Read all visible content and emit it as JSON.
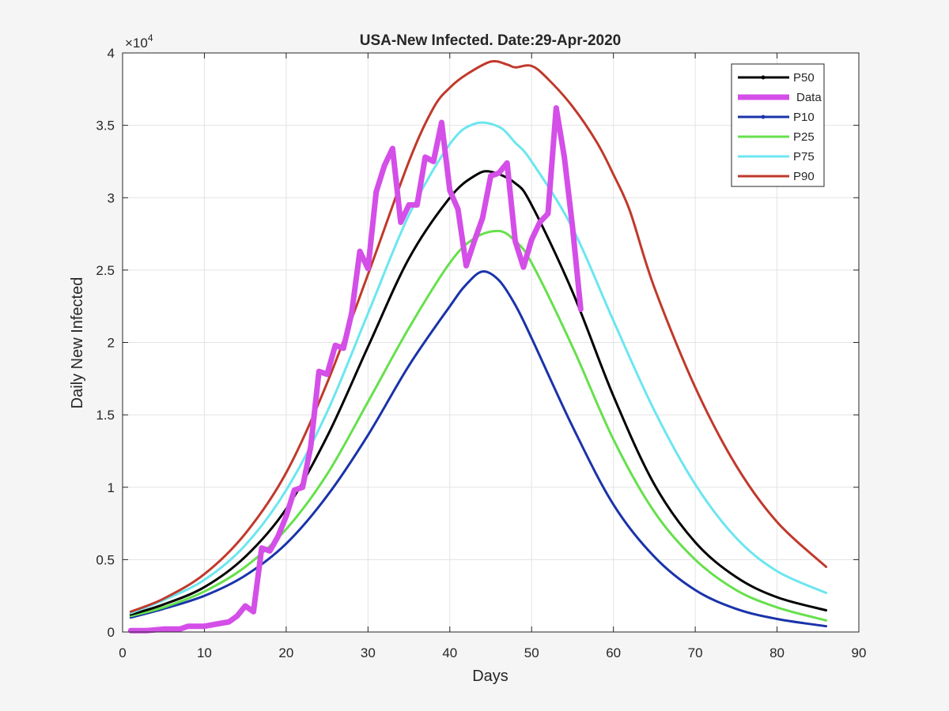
{
  "chart_data": {
    "type": "line",
    "title": "USA-New Infected. Date:29-Apr-2020",
    "xlabel": "Days",
    "ylabel": "Daily New Infected",
    "y_exponent_label": "×10",
    "y_exponent_power": "4",
    "xlim": [
      0,
      90
    ],
    "ylim": [
      0,
      40000
    ],
    "grid": true,
    "legend_position": "top-right",
    "x_ticks": [
      0,
      10,
      20,
      30,
      40,
      50,
      60,
      70,
      80,
      90
    ],
    "x_tick_labels": [
      "0",
      "10",
      "20",
      "30",
      "40",
      "50",
      "60",
      "70",
      "80",
      "90"
    ],
    "y_ticks": [
      0,
      5000,
      10000,
      15000,
      20000,
      25000,
      30000,
      35000,
      40000
    ],
    "y_tick_labels": [
      "0",
      "0.5",
      "1",
      "1.5",
      "2",
      "2.5",
      "3",
      "3.5",
      "4"
    ],
    "series": [
      {
        "name": "P50",
        "color": "#000000",
        "width": 3,
        "marker": true,
        "x": [
          1,
          5,
          10,
          15,
          20,
          25,
          30,
          35,
          40,
          43,
          45,
          48,
          50,
          55,
          60,
          65,
          70,
          75,
          80,
          86
        ],
        "y": [
          1200,
          1900,
          3100,
          5200,
          8500,
          13500,
          19700,
          25800,
          30000,
          31500,
          31800,
          31000,
          29500,
          23500,
          16300,
          10200,
          6200,
          3800,
          2400,
          1500
        ]
      },
      {
        "name": "Data",
        "color": "#d44ee8",
        "width": 7,
        "marker": false,
        "x": [
          1,
          3,
          5,
          7,
          8,
          10,
          12,
          13,
          14,
          15,
          16,
          17,
          18,
          19,
          20,
          21,
          22,
          23,
          24,
          25,
          26,
          27,
          28,
          29,
          30,
          31,
          32,
          33,
          34,
          35,
          36,
          37,
          38,
          39,
          40,
          41,
          42,
          43,
          44,
          45,
          46,
          47,
          48,
          49,
          50,
          51,
          52,
          53,
          54,
          55,
          56
        ],
        "y": [
          100,
          100,
          200,
          200,
          400,
          400,
          600,
          700,
          1100,
          1800,
          1400,
          5800,
          5600,
          6600,
          8000,
          9800,
          10000,
          12800,
          18000,
          17800,
          19800,
          19600,
          22000,
          26300,
          25100,
          30400,
          32200,
          33400,
          28300,
          29500,
          29500,
          32800,
          32500,
          35200,
          30500,
          29200,
          25300,
          27000,
          28600,
          31500,
          31700,
          32400,
          27000,
          25200,
          27100,
          28300,
          28900,
          36200,
          32800,
          28000,
          22300
        ]
      },
      {
        "name": "P10",
        "color": "#1a33aa",
        "width": 3,
        "marker": true,
        "x": [
          1,
          5,
          10,
          15,
          20,
          25,
          30,
          35,
          40,
          42,
          44,
          46,
          48,
          50,
          55,
          60,
          65,
          70,
          75,
          80,
          86
        ],
        "y": [
          1000,
          1600,
          2500,
          3900,
          6100,
          9400,
          13600,
          18400,
          22500,
          24000,
          24900,
          24300,
          22600,
          20300,
          14200,
          8800,
          5200,
          2900,
          1600,
          900,
          400
        ]
      },
      {
        "name": "P25",
        "color": "#66e04c",
        "width": 3,
        "marker": false,
        "x": [
          1,
          5,
          10,
          15,
          20,
          25,
          30,
          35,
          40,
          43,
          46,
          48,
          50,
          55,
          60,
          65,
          70,
          75,
          80,
          86
        ],
        "y": [
          1100,
          1700,
          2800,
          4500,
          7100,
          10900,
          15900,
          21000,
          25500,
          27200,
          27700,
          27000,
          25500,
          19700,
          13300,
          8300,
          5000,
          2900,
          1700,
          800
        ]
      },
      {
        "name": "P75",
        "color": "#6be6f0",
        "width": 3,
        "marker": false,
        "x": [
          1,
          5,
          10,
          15,
          20,
          25,
          30,
          35,
          40,
          43,
          46,
          48,
          50,
          55,
          60,
          65,
          70,
          75,
          80,
          86
        ],
        "y": [
          1300,
          2200,
          3600,
          6000,
          9800,
          15200,
          22000,
          28800,
          33700,
          35100,
          34900,
          33800,
          32500,
          27900,
          21500,
          15300,
          10200,
          6500,
          4200,
          2700
        ]
      },
      {
        "name": "P90",
        "color": "#c0392b",
        "width": 3,
        "marker": false,
        "x": [
          1,
          5,
          10,
          15,
          20,
          25,
          30,
          35,
          38,
          40,
          42,
          45,
          47,
          48,
          50,
          52,
          55,
          58,
          60,
          62,
          65,
          70,
          75,
          80,
          86
        ],
        "y": [
          1400,
          2300,
          4000,
          6800,
          11000,
          17200,
          24700,
          32500,
          36200,
          37600,
          38500,
          39400,
          39200,
          39000,
          39100,
          38200,
          36300,
          33800,
          31600,
          29100,
          23800,
          16900,
          11500,
          7600,
          4500
        ]
      }
    ]
  }
}
